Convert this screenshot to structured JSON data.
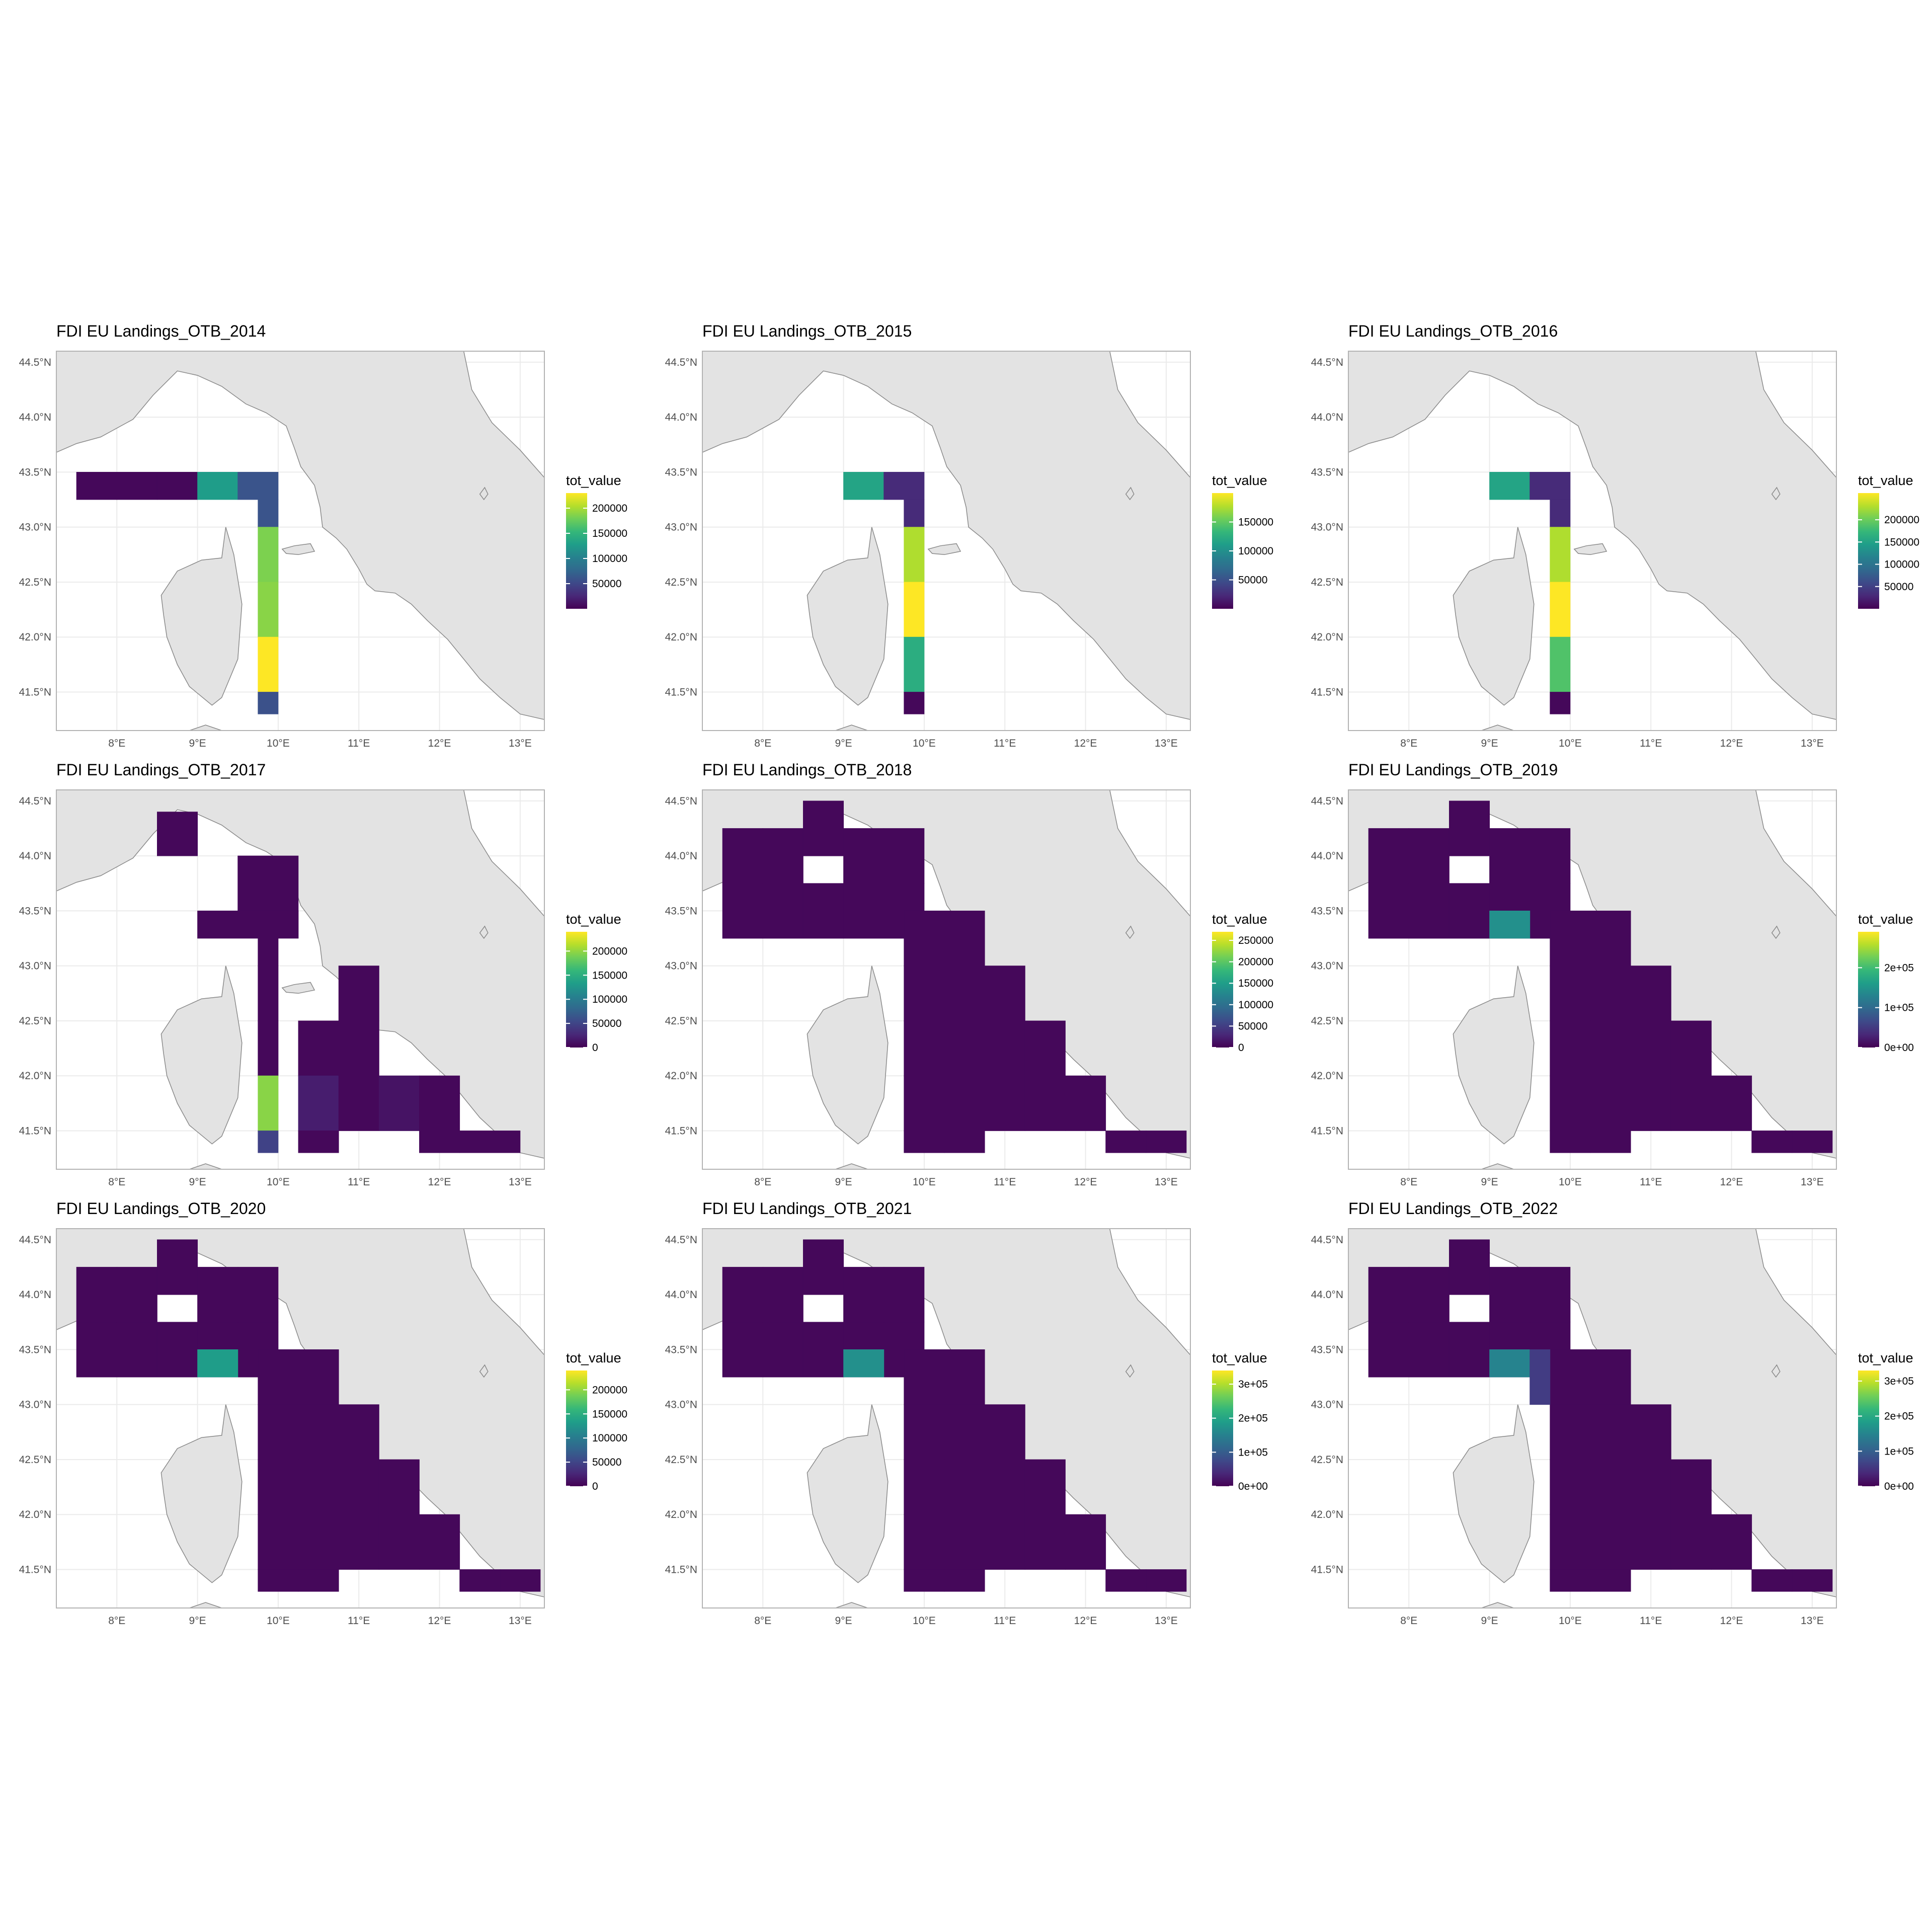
{
  "figure": {
    "panels": [
      {
        "title": "FDI EU Landings_OTB_2014",
        "legend_title": "tot_value",
        "legend_max": 230000,
        "legend_ticks": [
          {
            "v": 50000,
            "label": "50000"
          },
          {
            "v": 100000,
            "label": "100000"
          },
          {
            "v": 150000,
            "label": "150000"
          },
          {
            "v": 200000,
            "label": "200000"
          }
        ]
      },
      {
        "title": "FDI EU Landings_OTB_2015",
        "legend_title": "tot_value",
        "legend_max": 200000,
        "legend_ticks": [
          {
            "v": 50000,
            "label": "50000"
          },
          {
            "v": 100000,
            "label": "100000"
          },
          {
            "v": 150000,
            "label": "150000"
          }
        ]
      },
      {
        "title": "FDI EU Landings_OTB_2016",
        "legend_title": "tot_value",
        "legend_max": 260000,
        "legend_ticks": [
          {
            "v": 50000,
            "label": "50000"
          },
          {
            "v": 100000,
            "label": "100000"
          },
          {
            "v": 150000,
            "label": "150000"
          },
          {
            "v": 200000,
            "label": "200000"
          }
        ]
      },
      {
        "title": "FDI EU Landings_OTB_2017",
        "legend_title": "tot_value",
        "legend_max": 240000,
        "legend_ticks": [
          {
            "v": 0,
            "label": "0"
          },
          {
            "v": 50000,
            "label": "50000"
          },
          {
            "v": 100000,
            "label": "100000"
          },
          {
            "v": 150000,
            "label": "150000"
          },
          {
            "v": 200000,
            "label": "200000"
          }
        ]
      },
      {
        "title": "FDI EU Landings_OTB_2018",
        "legend_title": "tot_value",
        "legend_max": 270000,
        "legend_ticks": [
          {
            "v": 0,
            "label": "0"
          },
          {
            "v": 50000,
            "label": "50000"
          },
          {
            "v": 100000,
            "label": "100000"
          },
          {
            "v": 150000,
            "label": "150000"
          },
          {
            "v": 200000,
            "label": "200000"
          },
          {
            "v": 250000,
            "label": "250000"
          }
        ]
      },
      {
        "title": "FDI EU Landings_OTB_2019",
        "legend_title": "tot_value",
        "legend_max": 290000,
        "legend_ticks": [
          {
            "v": 0,
            "label": "0e+00"
          },
          {
            "v": 100000,
            "label": "1e+05"
          },
          {
            "v": 200000,
            "label": "2e+05"
          }
        ]
      },
      {
        "title": "FDI EU Landings_OTB_2020",
        "legend_title": "tot_value",
        "legend_max": 240000,
        "legend_ticks": [
          {
            "v": 0,
            "label": "0"
          },
          {
            "v": 50000,
            "label": "50000"
          },
          {
            "v": 100000,
            "label": "100000"
          },
          {
            "v": 150000,
            "label": "150000"
          },
          {
            "v": 200000,
            "label": "200000"
          }
        ]
      },
      {
        "title": "FDI EU Landings_OTB_2021",
        "legend_title": "tot_value",
        "legend_max": 340000,
        "legend_ticks": [
          {
            "v": 0,
            "label": "0e+00"
          },
          {
            "v": 100000,
            "label": "1e+05"
          },
          {
            "v": 200000,
            "label": "2e+05"
          },
          {
            "v": 300000,
            "label": "3e+05"
          }
        ]
      },
      {
        "title": "FDI EU Landings_OTB_2022",
        "legend_title": "tot_value",
        "legend_max": 330000,
        "legend_ticks": [
          {
            "v": 0,
            "label": "0e+00"
          },
          {
            "v": 100000,
            "label": "1e+05"
          },
          {
            "v": 200000,
            "label": "2e+05"
          },
          {
            "v": 300000,
            "label": "3e+05"
          }
        ]
      }
    ],
    "x_ticks": [
      {
        "v": 8,
        "label": "8°E"
      },
      {
        "v": 9,
        "label": "9°E"
      },
      {
        "v": 10,
        "label": "10°E"
      },
      {
        "v": 11,
        "label": "11°E"
      },
      {
        "v": 12,
        "label": "12°E"
      },
      {
        "v": 13,
        "label": "13°E"
      }
    ],
    "y_ticks": [
      {
        "v": 41.5,
        "label": "41.5°N"
      },
      {
        "v": 42.0,
        "label": "42.0°N"
      },
      {
        "v": 42.5,
        "label": "42.5°N"
      },
      {
        "v": 43.0,
        "label": "43.0°N"
      },
      {
        "v": 43.5,
        "label": "43.5°N"
      },
      {
        "v": 44.0,
        "label": "44.0°N"
      },
      {
        "v": 44.5,
        "label": "44.5°N"
      }
    ],
    "xlim": [
      7.25,
      13.3
    ],
    "ylim": [
      41.15,
      44.6
    ],
    "colors": {
      "land": "#e3e3e3",
      "coast": "#8a8a8a",
      "grid": "#ebebeb",
      "panel_border": "#b3b3b3",
      "viridis": [
        "#440154",
        "#482878",
        "#3e4989",
        "#31688e",
        "#26828e",
        "#1f9e89",
        "#35b779",
        "#6ece58",
        "#b5de2b",
        "#fde725"
      ]
    }
  }
}
